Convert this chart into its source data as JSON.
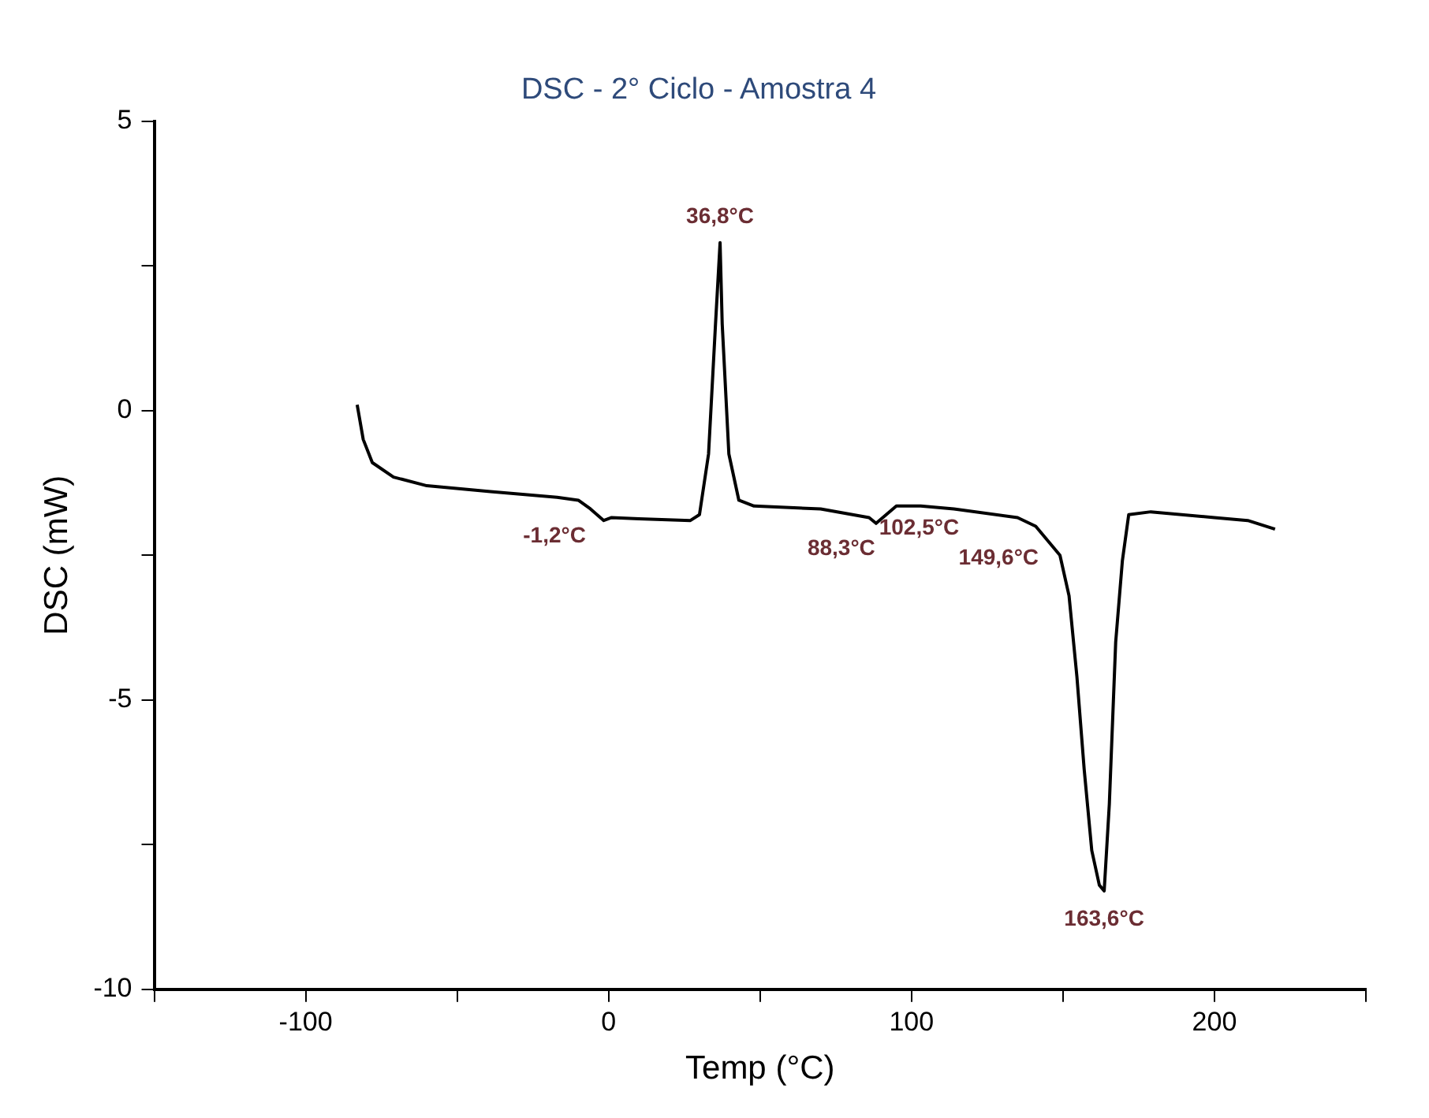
{
  "chart_data": {
    "type": "line",
    "title": "DSC - 2° Ciclo - Amostra 4",
    "xlabel": "Temp (°C)",
    "ylabel": "DSC (mW)",
    "xlim": [
      -150,
      250
    ],
    "ylim": [
      -10,
      5
    ],
    "xticks": [
      {
        "value": -150,
        "label": null
      },
      -100,
      {
        "value": -50,
        "label": null
      },
      0,
      {
        "value": 50,
        "label": null
      },
      100,
      {
        "value": 150,
        "label": null
      },
      200,
      {
        "value": 250,
        "label": null
      }
    ],
    "yticks": [
      -10,
      {
        "value": -7.5,
        "label": null
      },
      -5,
      {
        "value": -2.5,
        "label": null
      },
      0,
      {
        "value": 2.5,
        "label": null
      },
      5
    ],
    "grid": false,
    "legend": false,
    "marker": "none",
    "line_style": "solid",
    "series": [
      {
        "color": "#000000",
        "x": [
          -83,
          -81,
          -78,
          -71,
          -60,
          -39,
          -17,
          -10,
          -6,
          -1.6,
          1,
          10,
          27,
          30,
          33,
          35.3,
          36.8,
          37.5,
          39.7,
          43,
          48,
          70,
          86,
          88.3,
          95,
          103,
          114,
          135,
          141,
          149,
          152,
          154.6,
          157,
          159.5,
          162,
          163.6,
          165.3,
          167.4,
          169.6,
          171.7,
          179,
          200,
          211,
          220
        ],
        "values": [
          0.1,
          -0.5,
          -0.9,
          -1.15,
          -1.3,
          -1.4,
          -1.5,
          -1.55,
          -1.7,
          -1.9,
          -1.85,
          -1.87,
          -1.9,
          -1.8,
          -0.75,
          1.5,
          2.9,
          1.5,
          -0.75,
          -1.55,
          -1.65,
          -1.7,
          -1.85,
          -1.95,
          -1.65,
          -1.65,
          -1.7,
          -1.85,
          -2,
          -2.5,
          -3.2,
          -4.6,
          -6.2,
          -7.6,
          -8.2,
          -8.3,
          -6.8,
          -4,
          -2.6,
          -1.8,
          -1.75,
          -1.85,
          -1.9,
          -2.05
        ]
      }
    ],
    "annotations": [
      {
        "text": "-1,2°C",
        "x": -1.2,
        "y": -1.9
      },
      {
        "text": "36,8°C",
        "x": 36.8,
        "y": 2.9
      },
      {
        "text": "88,3°C",
        "x": 88.3,
        "y": -1.95
      },
      {
        "text": "102,5°C",
        "x": 102.5,
        "y": -1.65
      },
      {
        "text": "149,6°C",
        "x": 149.6,
        "y": -2.5
      },
      {
        "text": "163,6°C",
        "x": 163.6,
        "y": -8.3
      }
    ]
  }
}
